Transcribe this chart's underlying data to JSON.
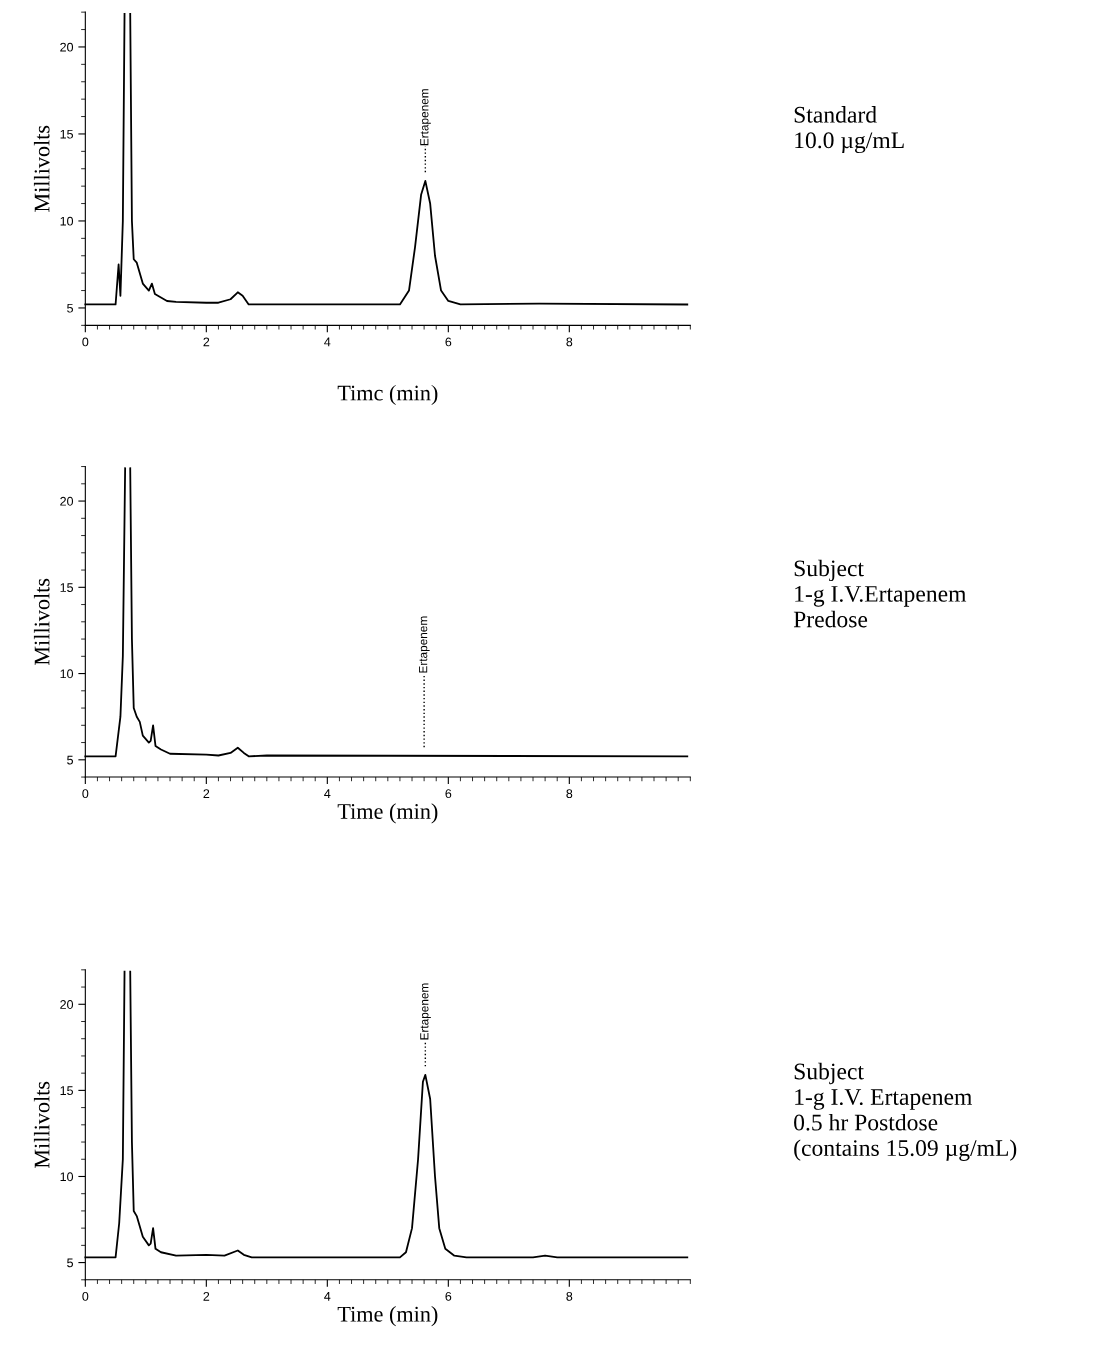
{
  "chart_data": [
    {
      "type": "line",
      "xlabel": "Timc (min)",
      "ylabel": "Millivolts",
      "xlim": [
        0,
        10
      ],
      "ylim": [
        4,
        22
      ],
      "xticks": [
        0,
        2,
        4,
        6,
        8
      ],
      "yticks": [
        5,
        10,
        15,
        20
      ],
      "grid": false,
      "legend": false,
      "marker": "none",
      "line_style": "solid",
      "series": [
        {
          "color": "#000000",
          "x": [
            0,
            0.5,
            0.55,
            0.58,
            0.62,
            0.648,
            0.695,
            0.742,
            0.77,
            0.8,
            0.85,
            0.95,
            1.05,
            1.1,
            1.15,
            1.25,
            1.35,
            1.5,
            2.0,
            2.2,
            2.4,
            2.52,
            2.6,
            2.7,
            3.0,
            5.2,
            5.35,
            5.45,
            5.55,
            5.62,
            5.7,
            5.78,
            5.88,
            6.0,
            6.2,
            7.5,
            9.95
          ],
          "values": [
            5.2,
            5.2,
            7.5,
            5.7,
            10,
            21.9,
            null,
            21.9,
            10,
            7.8,
            7.6,
            6.4,
            6,
            6.4,
            5.8,
            5.6,
            5.4,
            5.35,
            5.3,
            5.3,
            5.5,
            5.9,
            5.7,
            5.2,
            5.2,
            5.2,
            6,
            8.5,
            11.5,
            12.3,
            11,
            8,
            6,
            5.4,
            5.2,
            5.25,
            5.2
          ]
        }
      ],
      "ref_lines": [
        {
          "axis": "x",
          "value": 5.62,
          "label": "Ertapenem",
          "line_style": "dotted",
          "color": "#000000"
        }
      ],
      "annotations": [
        "Standard\n10.0 µg/mL"
      ]
    },
    {
      "type": "line",
      "xlabel": "Time (min)",
      "ylabel": "Millivolts",
      "xlim": [
        0,
        10
      ],
      "ylim": [
        4,
        22
      ],
      "xticks": [
        0,
        2,
        4,
        6,
        8
      ],
      "yticks": [
        5,
        10,
        15,
        20
      ],
      "grid": false,
      "legend": false,
      "marker": "none",
      "line_style": "solid",
      "series": [
        {
          "color": "#000000",
          "x": [
            0,
            0.5,
            0.58,
            0.62,
            0.658,
            0.7,
            0.742,
            0.77,
            0.8,
            0.85,
            0.9,
            0.95,
            1.05,
            1.08,
            1.12,
            1.16,
            1.25,
            1.4,
            2.0,
            2.2,
            2.4,
            2.52,
            2.62,
            2.7,
            3.0,
            9.95
          ],
          "values": [
            5.2,
            5.2,
            7.5,
            11,
            21.9,
            null,
            21.9,
            12,
            8,
            7.5,
            7.2,
            6.4,
            6,
            6.1,
            7,
            5.8,
            5.6,
            5.35,
            5.3,
            5.25,
            5.4,
            5.7,
            5.4,
            5.2,
            5.25,
            5.2
          ]
        }
      ],
      "ref_lines": [
        {
          "axis": "x",
          "value": 5.6,
          "label": "Ertapenem",
          "line_style": "dotted",
          "color": "#000000"
        }
      ],
      "annotations": [
        "Subject\n1-g I.V.Ertapenem\nPredose"
      ]
    },
    {
      "type": "line",
      "xlabel": "Time (min)",
      "ylabel": "Millivolts",
      "xlim": [
        0,
        10
      ],
      "ylim": [
        4,
        22
      ],
      "xticks": [
        0,
        2,
        4,
        6,
        8
      ],
      "yticks": [
        5,
        10,
        15,
        20
      ],
      "grid": false,
      "legend": false,
      "marker": "none",
      "line_style": "solid",
      "series": [
        {
          "color": "#000000",
          "x": [
            0,
            0.5,
            0.56,
            0.62,
            0.648,
            0.695,
            0.742,
            0.77,
            0.8,
            0.85,
            0.95,
            1.05,
            1.08,
            1.12,
            1.16,
            1.25,
            1.5,
            2.0,
            2.3,
            2.52,
            2.62,
            2.75,
            3.0,
            5.2,
            5.3,
            5.4,
            5.5,
            5.58,
            5.62,
            5.7,
            5.78,
            5.85,
            5.95,
            6.1,
            6.3,
            7.4,
            7.6,
            7.8,
            9.95
          ],
          "values": [
            5.3,
            5.3,
            7.3,
            11,
            21.9,
            null,
            21.9,
            12,
            8,
            7.7,
            6.5,
            6,
            6.1,
            7,
            5.8,
            5.6,
            5.4,
            5.45,
            5.4,
            5.7,
            5.45,
            5.3,
            5.3,
            5.3,
            5.6,
            7,
            11,
            15.5,
            15.9,
            14.5,
            10,
            7,
            5.8,
            5.4,
            5.3,
            5.3,
            5.4,
            5.3,
            5.3
          ]
        }
      ],
      "ref_lines": [
        {
          "axis": "x",
          "value": 5.62,
          "label": "Ertapenem",
          "line_style": "dotted",
          "color": "#000000"
        }
      ],
      "annotations": [
        "Subject\n1-g I.V. Ertapenem\n0.5 hr Postdose\n(contains 15.09 µg/mL)"
      ]
    }
  ]
}
